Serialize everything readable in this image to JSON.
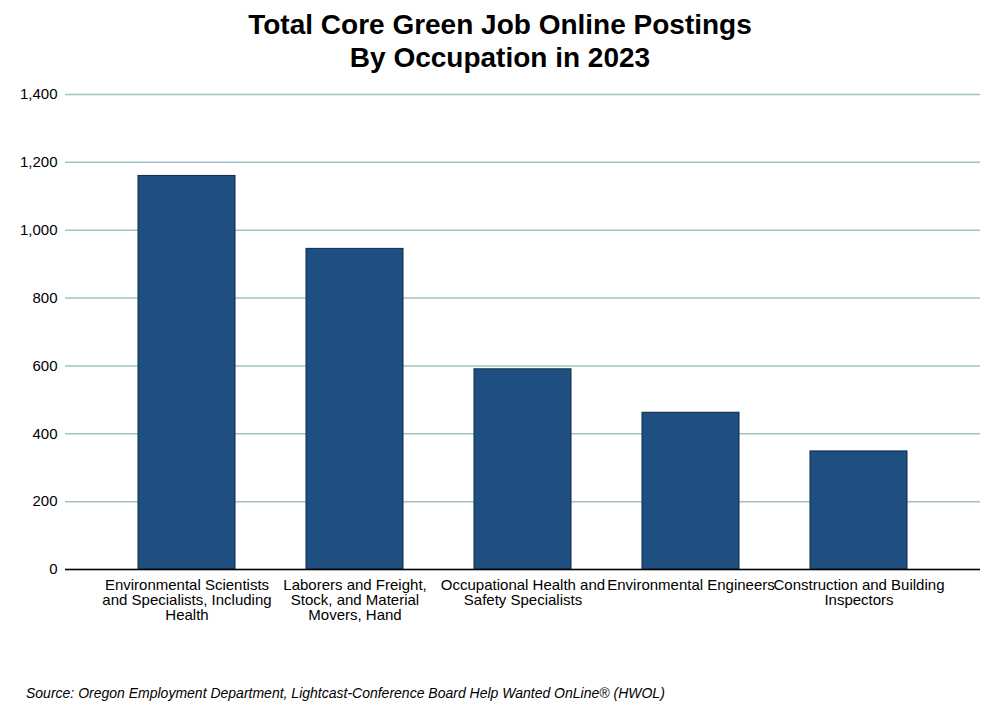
{
  "chart_data": {
    "type": "bar",
    "title": "Total Core Green Job Online Postings\nBy Occupation in 2023",
    "source": "Source: Oregon Employment Department, Lightcast-Conference Board Help Wanted OnLine® (HWOL)",
    "categories": [
      "Environmental Scientists and Specialists, Including Health",
      "Laborers and Freight, Stock, and Material Movers, Hand",
      "Occupational Health and Safety Specialists",
      "Environmental Engineers",
      "Construction and Building Inspectors"
    ],
    "values": [
      1160,
      945,
      590,
      462,
      348
    ],
    "color": "#1f4e80",
    "ylim": [
      0,
      1400
    ],
    "yticks": [
      0,
      200,
      400,
      600,
      800,
      {
        "value": 1000,
        "label": "1,000"
      },
      {
        "value": 1200,
        "label": "1,200"
      },
      {
        "value": 1400,
        "label": "1,400"
      }
    ],
    "grid": true
  }
}
